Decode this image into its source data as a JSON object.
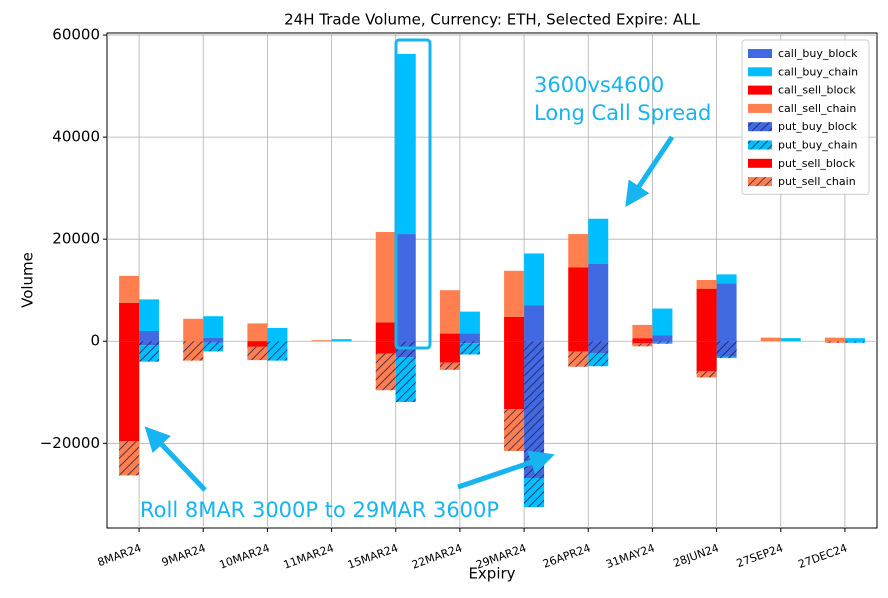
{
  "chart_data": {
    "type": "bar",
    "title": "24H Trade Volume, Currency: ETH, Selected Expire: ALL",
    "x_label": "Expiry",
    "y_label": "Volume",
    "categories": [
      "8MAR24",
      "9MAR24",
      "10MAR24",
      "11MAR24",
      "15MAR24",
      "22MAR24",
      "29MAR24",
      "26APR24",
      "31MAY24",
      "28JUN24",
      "27SEP24",
      "27DEC24"
    ],
    "ylim": [
      -36600,
      60400
    ],
    "yticks": [
      60000,
      40000,
      20000,
      0,
      {
        "value": -20000,
        "label": "−20000"
      }
    ],
    "grid": true,
    "legend": "upper right",
    "series": [
      {
        "name": "call_buy_block",
        "color": "#4169e1",
        "hatch": false,
        "stack": "buy",
        "values": [
          2000,
          700,
          0,
          0,
          21000,
          1500,
          7000,
          15200,
          1200,
          11300,
          0,
          0
        ]
      },
      {
        "name": "call_buy_chain",
        "color": "#00bfff",
        "hatch": false,
        "stack": "buy",
        "values": [
          6200,
          4200,
          2600,
          400,
          35300,
          4300,
          10200,
          8800,
          5200,
          1800,
          600,
          600
        ]
      },
      {
        "name": "call_sell_block",
        "color": "#ff0000",
        "hatch": false,
        "stack": "sell",
        "values": [
          7500,
          0,
          0,
          0,
          3700,
          1500,
          4800,
          14500,
          600,
          10300,
          0,
          0
        ]
      },
      {
        "name": "call_sell_chain",
        "color": "#ff7f50",
        "hatch": false,
        "stack": "sell",
        "values": [
          5300,
          4400,
          3500,
          200,
          17700,
          8500,
          9000,
          6500,
          2600,
          1700,
          700,
          700
        ]
      },
      {
        "name": "put_buy_block",
        "color": "#4169e1",
        "hatch": true,
        "stack": "buy",
        "values": [
          -800,
          -300,
          -100,
          0,
          -3100,
          -400,
          -26800,
          -2300,
          -300,
          -3000,
          0,
          0
        ]
      },
      {
        "name": "put_buy_chain",
        "color": "#00bfff",
        "hatch": true,
        "stack": "buy",
        "values": [
          -3200,
          -1700,
          -3700,
          0,
          -8800,
          -2200,
          -5700,
          -2600,
          -200,
          -300,
          0,
          -300
        ]
      },
      {
        "name": "put_sell_block",
        "color": "#ff0000",
        "hatch": false,
        "stack": "sell",
        "values": [
          -19600,
          0,
          -1100,
          0,
          -2400,
          -4200,
          -13300,
          -2000,
          -400,
          -5900,
          0,
          0
        ]
      },
      {
        "name": "put_sell_chain",
        "color": "#ff7f50",
        "hatch": true,
        "stack": "sell",
        "values": [
          -6700,
          -3800,
          -2600,
          0,
          -7200,
          -1400,
          -8200,
          -3000,
          -600,
          -1200,
          0,
          -300
        ]
      }
    ],
    "annotations": [
      "3600vs4600",
      "Long Call Spread",
      "Roll 8MAR 3000P to 29MAR 3600P"
    ]
  }
}
